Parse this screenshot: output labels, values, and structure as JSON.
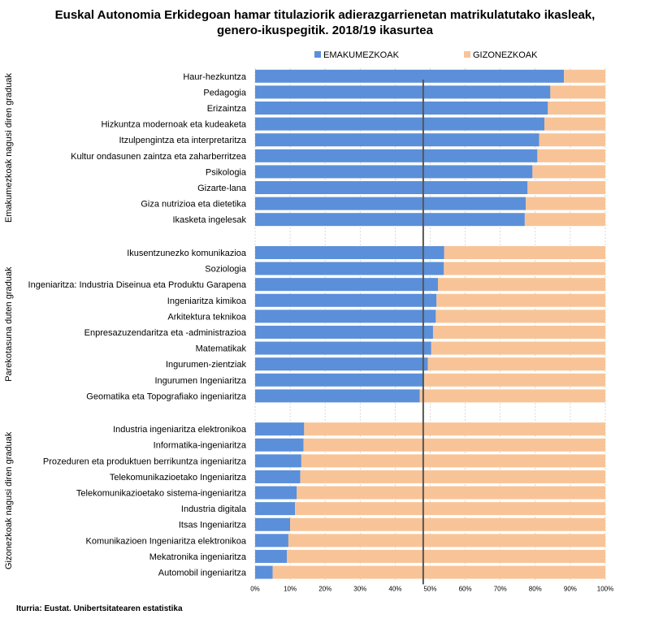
{
  "chart_data": {
    "type": "bar",
    "orientation": "horizontal",
    "stacked": "percent",
    "title_line1": "Euskal Autonomia Erkidegoan hamar titulaziorik adierazgarrienetan matrikulatutako ikasleak,",
    "title_line2": "genero-ikuspegitik. 2018/19 ikasurtea",
    "source": "Iturria: Eustat. Unibertsitatearen estatistika",
    "xlim": [
      0,
      100
    ],
    "x_ticks": [
      "0%",
      "10%",
      "20%",
      "30%",
      "40%",
      "50%",
      "60%",
      "70%",
      "80%",
      "90%",
      "100%"
    ],
    "reference_line": 48,
    "series": [
      {
        "name": "EMAKUMEZKOAK",
        "color": "#5b8fd9"
      },
      {
        "name": "GIZONEZKOAK",
        "color": "#f8c497"
      }
    ],
    "groups": [
      {
        "label": "Emakumezkoak nagusi diren graduak",
        "categories": [
          "Haur-hezkuntza",
          "Pedagogia",
          "Erizaintza",
          "Hizkuntza modernoak eta kudeaketa",
          "Itzulpengintza eta interpretaritza",
          "Kultur ondasunen zaintza eta zaharberritzea",
          "Psikologia",
          "Gizarte-lana",
          "Giza nutrizioa eta dietetika",
          "Ikasketa ingelesak"
        ],
        "women": [
          88.2,
          84.3,
          83.6,
          82.6,
          81.1,
          80.6,
          79.2,
          77.8,
          77.3,
          77.0
        ]
      },
      {
        "label": "Parekotasuna duten graduak",
        "categories": [
          "Ikusentzunezko komunikazioa",
          "Soziologia",
          "Ingeniaritza: Industria Diseinua eta Produktu Garapena",
          "Ingeniaritza kimikoa",
          "Arkitektura teknikoa",
          "Enpresazuzendaritza eta -administrazioa",
          "Matematikak",
          "Ingurumen-zientziak",
          "Ingurumen Ingeniaritza",
          "Geomatika eta Topografiako ingeniaritza"
        ],
        "women": [
          54.0,
          53.9,
          52.2,
          51.8,
          51.6,
          50.8,
          50.3,
          49.3,
          48.3,
          47.0
        ]
      },
      {
        "label": "Gizonezkoak nagusi diren graduak",
        "categories": [
          "Industria ingeniaritza elektronikoa",
          "Informatika-ingeniaritza",
          "Prozeduren eta produktuen berrikuntza ingeniaritza",
          "Telekomunikazioetako Ingeniaritza",
          "Telekomunikazioetako sistema-ingeniaritza",
          "Industria digitala",
          "Itsas Ingeniaritza",
          "Komunikazioen Ingeniaritza elektronikoa",
          "Mekatronika ingeniaritza",
          "Automobil ingeniaritza"
        ],
        "women": [
          14.0,
          13.8,
          13.2,
          12.9,
          11.9,
          11.4,
          10.0,
          9.5,
          9.1,
          5.0
        ]
      }
    ]
  }
}
